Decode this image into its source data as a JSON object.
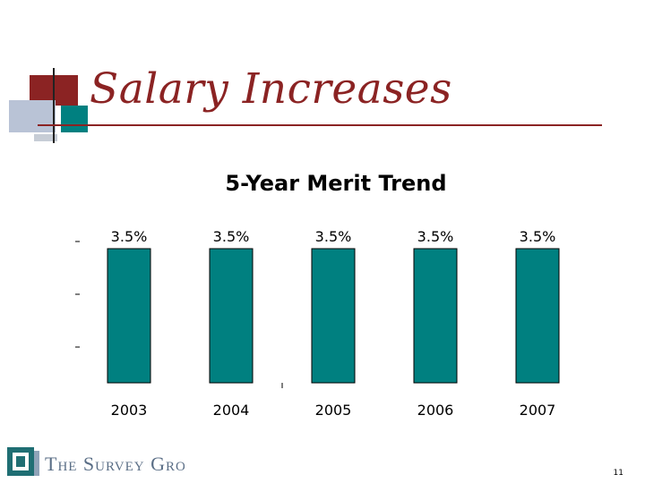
{
  "slide": {
    "title": "Salary Increases",
    "page_number": "11"
  },
  "brand": {
    "logo_text": "The Survey Group",
    "accent_color": "#8b2323",
    "bar_color": "#008080"
  },
  "chart_data": {
    "type": "bar",
    "title": "5-Year Merit Trend",
    "categories": [
      "2003",
      "2004",
      "2005",
      "2006",
      "2007"
    ],
    "values": [
      3.5,
      3.5,
      3.5,
      3.5,
      3.5
    ],
    "data_labels": [
      "3.5%",
      "3.5%",
      "3.5%",
      "3.5%",
      "3.5%"
    ],
    "xlabel": "",
    "ylabel": "",
    "ylim": [
      0,
      3.5
    ],
    "grid": false,
    "legend": "none"
  }
}
